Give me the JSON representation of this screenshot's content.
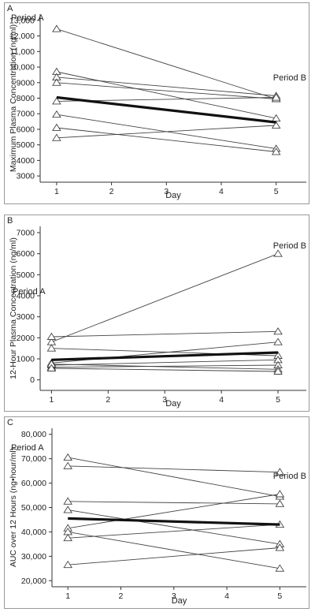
{
  "chart_data": [
    {
      "type": "line",
      "panel_label": "A",
      "title": "",
      "xlabel": "Day",
      "ylabel": "Maximum Plasma Concentration (ng/ml)",
      "x_ticks": [
        "1",
        "2",
        "3",
        "4",
        "5"
      ],
      "y_ticks": [
        "3000",
        "4000",
        "5000",
        "6000",
        "7000",
        "8000",
        "9000",
        "10,000",
        "11,000",
        "12,000",
        "13,000"
      ],
      "xlim": [
        0.7,
        5.55
      ],
      "ylim": [
        2600,
        13400
      ],
      "grid": false,
      "annotations": [
        "Period A",
        "Period B"
      ],
      "series": [
        {
          "x": [
            1,
            5
          ],
          "values": [
            12450,
            7950
          ]
        },
        {
          "x": [
            1,
            5
          ],
          "values": [
            9700,
            6700
          ]
        },
        {
          "x": [
            1,
            5
          ],
          "values": [
            9350,
            8150
          ]
        },
        {
          "x": [
            1,
            5
          ],
          "values": [
            9000,
            7950
          ]
        },
        {
          "x": [
            1,
            5
          ],
          "values": [
            7800,
            8050
          ]
        },
        {
          "x": [
            1,
            5
          ],
          "values": [
            6950,
            4750
          ]
        },
        {
          "x": [
            1,
            5
          ],
          "values": [
            6100,
            4550
          ]
        },
        {
          "x": [
            1,
            5
          ],
          "values": [
            5450,
            6250
          ]
        },
        {
          "x": [
            1,
            5
          ],
          "values": [
            8050,
            6450
          ],
          "style": "mean"
        }
      ]
    },
    {
      "type": "line",
      "panel_label": "B",
      "title": "",
      "xlabel": "Day",
      "ylabel": "12-Hour Plasma Concentration (ng/ml)",
      "x_ticks": [
        "1",
        "2",
        "3",
        "4",
        "5"
      ],
      "y_ticks": [
        "0",
        "1000",
        "2000",
        "3000",
        "4000",
        "5000",
        "6000",
        "7000"
      ],
      "xlim": [
        0.8,
        5.5
      ],
      "ylim": [
        -500,
        7300
      ],
      "grid": false,
      "annotations": [
        "Period A",
        "Period B"
      ],
      "series": [
        {
          "x": [
            1,
            5
          ],
          "values": [
            1800,
            6000
          ]
        },
        {
          "x": [
            1,
            5
          ],
          "values": [
            2050,
            2300
          ]
        },
        {
          "x": [
            1,
            5
          ],
          "values": [
            1500,
            1150
          ]
        },
        {
          "x": [
            1,
            5
          ],
          "values": [
            800,
            1800
          ]
        },
        {
          "x": [
            1,
            5
          ],
          "values": [
            700,
            950
          ]
        },
        {
          "x": [
            1,
            5
          ],
          "values": [
            600,
            700
          ]
        },
        {
          "x": [
            1,
            5
          ],
          "values": [
            750,
            500
          ]
        },
        {
          "x": [
            1,
            5
          ],
          "values": [
            550,
            400
          ]
        },
        {
          "x": [
            1,
            5
          ],
          "values": [
            950,
            1300
          ],
          "style": "mean"
        }
      ]
    },
    {
      "type": "line",
      "panel_label": "C",
      "title": "",
      "xlabel": "Day",
      "ylabel": "AUC over 12 Hours (ng•hour/ml)",
      "x_ticks": [
        "1",
        "2",
        "3",
        "4",
        "5"
      ],
      "y_ticks": [
        "20,000",
        "30,000",
        "40,000",
        "50,000",
        "60,000",
        "70,000",
        "80,000"
      ],
      "xlim": [
        0.7,
        5.5
      ],
      "ylim": [
        17500,
        82500
      ],
      "grid": false,
      "annotations": [
        "Period A",
        "Period B"
      ],
      "series": [
        {
          "x": [
            1,
            5
          ],
          "values": [
            70500,
            54500
          ]
        },
        {
          "x": [
            1,
            5
          ],
          "values": [
            67000,
            64500
          ]
        },
        {
          "x": [
            1,
            5
          ],
          "values": [
            52500,
            51500
          ]
        },
        {
          "x": [
            1,
            5
          ],
          "values": [
            49000,
            35000
          ]
        },
        {
          "x": [
            1,
            5
          ],
          "values": [
            41500,
            55500
          ]
        },
        {
          "x": [
            1,
            5
          ],
          "values": [
            40000,
            25000
          ]
        },
        {
          "x": [
            1,
            5
          ],
          "values": [
            37500,
            43000
          ]
        },
        {
          "x": [
            1,
            5
          ],
          "values": [
            26500,
            33500
          ]
        },
        {
          "x": [
            1,
            5
          ],
          "values": [
            45500,
            43000
          ],
          "style": "mean"
        }
      ]
    }
  ]
}
